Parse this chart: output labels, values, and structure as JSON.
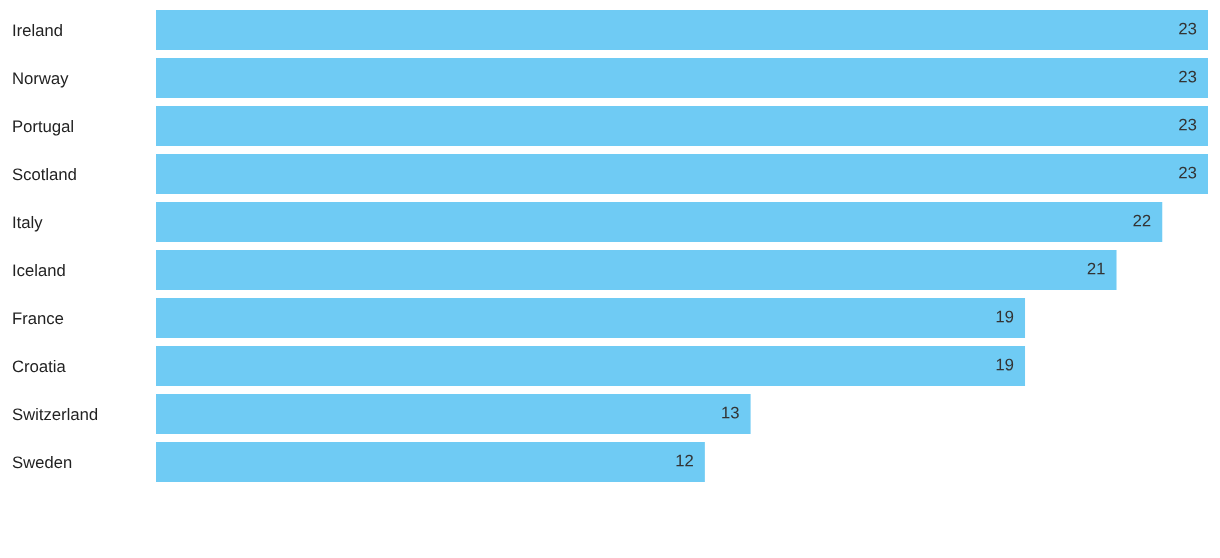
{
  "chart_data": {
    "type": "bar",
    "orientation": "horizontal",
    "categories": [
      "Ireland",
      "Norway",
      "Portugal",
      "Scotland",
      "Italy",
      "Iceland",
      "France",
      "Croatia",
      "Switzerland",
      "Sweden"
    ],
    "values": [
      23,
      23,
      23,
      23,
      22,
      21,
      19,
      19,
      13,
      12
    ],
    "color": "#6fcbf4",
    "data_labels": true,
    "grid": false,
    "legend": false
  }
}
